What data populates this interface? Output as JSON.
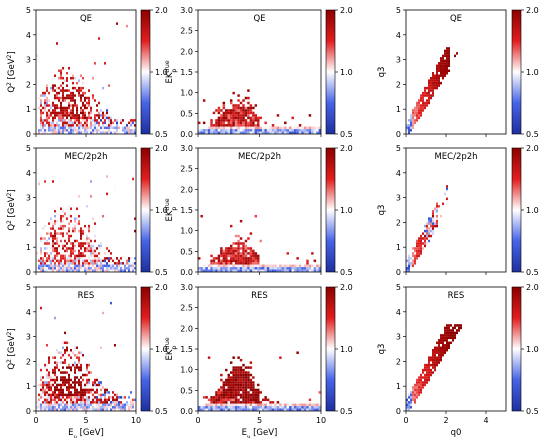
{
  "colors": {
    "low": "#1f2f9e",
    "mid": "#ffffff",
    "high": "#8c0000"
  },
  "colorbar": {
    "min": 0.5,
    "max": 2.0,
    "ticks": [
      "2.0",
      "1.0",
      "0.5"
    ]
  },
  "chart_data": [
    {
      "type": "heatmap",
      "title": "QE",
      "xlabel": "",
      "ylabel_main": "Q",
      "ylabel_sup": "2",
      "ylabel_rest": " [GeV",
      "ylabel_sup2": "2",
      "ylabel_end": "]",
      "xlim": [
        0,
        10
      ],
      "ylim": [
        0,
        5
      ],
      "xticks": [
        "",
        "",
        ""
      ],
      "yticks": [
        "0",
        "1",
        "2",
        "3",
        "4",
        "5"
      ],
      "kind": "q2"
    },
    {
      "type": "heatmap",
      "title": "QE",
      "xlabel": "",
      "ylabel_main": "EK",
      "ylabel_sub": "p",
      "ylabel_sup": "true",
      "xlim": [
        0,
        10
      ],
      "ylim": [
        0,
        3
      ],
      "xticks": [
        "",
        "",
        ""
      ],
      "yticks": [
        "0.0",
        "0.5",
        "1.0",
        "1.5",
        "2.0",
        "2.5",
        "3.0"
      ],
      "kind": "ek"
    },
    {
      "type": "heatmap",
      "title": "QE",
      "xlabel": "",
      "ylabel_main": "q3",
      "xlim": [
        0,
        5
      ],
      "ylim": [
        0,
        5
      ],
      "xticks": [
        "",
        "",
        ""
      ],
      "yticks": [
        "0",
        "1",
        "2",
        "3",
        "4",
        "5"
      ],
      "kind": "q3"
    },
    {
      "type": "heatmap",
      "title": "MEC/2p2h",
      "xlabel": "",
      "ylabel_main": "Q",
      "ylabel_sup": "2",
      "ylabel_rest": " [GeV",
      "ylabel_sup2": "2",
      "ylabel_end": "]",
      "xlim": [
        0,
        10
      ],
      "ylim": [
        0,
        5
      ],
      "xticks": [
        "",
        "",
        ""
      ],
      "yticks": [
        "0",
        "1",
        "2",
        "3",
        "4",
        "5"
      ],
      "kind": "q2"
    },
    {
      "type": "heatmap",
      "title": "MEC/2p2h",
      "xlabel": "",
      "ylabel_main": "EK",
      "ylabel_sub": "p",
      "ylabel_sup": "true",
      "xlim": [
        0,
        10
      ],
      "ylim": [
        0,
        3
      ],
      "xticks": [
        "",
        "",
        ""
      ],
      "yticks": [
        "0.0",
        "0.5",
        "1.0",
        "1.5",
        "2.0",
        "2.5",
        "3.0"
      ],
      "kind": "ek"
    },
    {
      "type": "heatmap",
      "title": "MEC/2p2h",
      "xlabel": "",
      "ylabel_main": "q3",
      "xlim": [
        0,
        5
      ],
      "ylim": [
        0,
        5
      ],
      "xticks": [
        "",
        "",
        ""
      ],
      "yticks": [
        "0",
        "1",
        "2",
        "3",
        "4",
        "5"
      ],
      "kind": "q3"
    },
    {
      "type": "heatmap",
      "title": "RES",
      "xlabel_main": "E",
      "xlabel_sub": "ν",
      "xlabel_rest": " [GeV]",
      "ylabel_main": "Q",
      "ylabel_sup": "2",
      "ylabel_rest": " [GeV",
      "ylabel_sup2": "2",
      "ylabel_end": "]",
      "xlim": [
        0,
        10
      ],
      "ylim": [
        0,
        5
      ],
      "xticks": [
        "0",
        "5",
        "10"
      ],
      "yticks": [
        "0",
        "1",
        "2",
        "3",
        "4",
        "5"
      ],
      "kind": "q2"
    },
    {
      "type": "heatmap",
      "title": "RES",
      "xlabel_main": "E",
      "xlabel_sub": "ν",
      "xlabel_rest": " [GeV]",
      "ylabel_main": "EK",
      "ylabel_sub": "p",
      "ylabel_sup": "true",
      "xlim": [
        0,
        10
      ],
      "ylim": [
        0,
        3
      ],
      "xticks": [
        "0",
        "5",
        "10"
      ],
      "yticks": [
        "0.0",
        "0.5",
        "1.0",
        "1.5",
        "2.0",
        "2.5",
        "3.0"
      ],
      "kind": "ek"
    },
    {
      "type": "heatmap",
      "title": "RES",
      "xlabel_main": "q0",
      "ylabel_main": "q3",
      "xlim": [
        0,
        5
      ],
      "ylim": [
        0,
        5
      ],
      "xticks": [
        "0",
        "2",
        "4"
      ],
      "yticks": [
        "0",
        "1",
        "2",
        "3",
        "4",
        "5"
      ],
      "kind": "q3"
    }
  ]
}
